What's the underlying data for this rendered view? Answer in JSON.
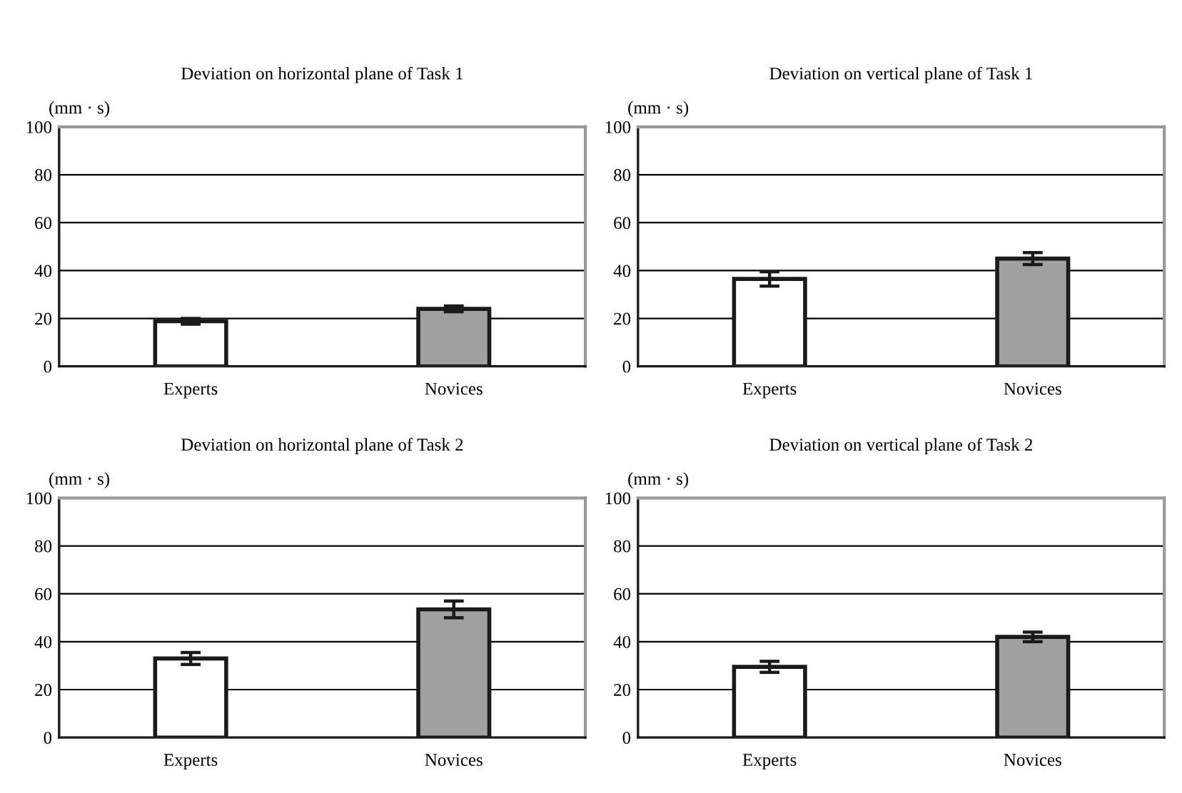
{
  "chart_data": [
    {
      "type": "bar",
      "title": "Deviation on horizontal plane of Task 1",
      "ylabel": "(mm · s)",
      "categories": [
        "Experts",
        "Novices"
      ],
      "values": [
        18.8,
        24
      ],
      "errors": [
        1.2,
        1.2
      ],
      "colors": [
        "#ffffff",
        "#a0a0a0"
      ],
      "ylim": [
        0,
        100
      ],
      "yticks": [
        0,
        20,
        40,
        60,
        80,
        100
      ],
      "grid": "y"
    },
    {
      "type": "bar",
      "title": "Deviation on vertical plane of Task 1",
      "ylabel": "(mm · s)",
      "categories": [
        "Experts",
        "Novices"
      ],
      "values": [
        36.5,
        45
      ],
      "errors": [
        3,
        2.5
      ],
      "colors": [
        "#ffffff",
        "#a0a0a0"
      ],
      "ylim": [
        0,
        100
      ],
      "yticks": [
        0,
        20,
        40,
        60,
        80,
        100
      ],
      "grid": "y"
    },
    {
      "type": "bar",
      "title": "Deviation on horizontal plane of Task 2",
      "ylabel": "(mm · s)",
      "categories": [
        "Experts",
        "Novices"
      ],
      "values": [
        33,
        53.5
      ],
      "errors": [
        2.5,
        3.5
      ],
      "colors": [
        "#ffffff",
        "#a0a0a0"
      ],
      "ylim": [
        0,
        100
      ],
      "yticks": [
        0,
        20,
        40,
        60,
        80,
        100
      ],
      "grid": "y"
    },
    {
      "type": "bar",
      "title": "Deviation on vertical plane of Task 2",
      "ylabel": "(mm · s)",
      "categories": [
        "Experts",
        "Novices"
      ],
      "values": [
        29.5,
        42
      ],
      "errors": [
        2.3,
        2
      ],
      "colors": [
        "#ffffff",
        "#a0a0a0"
      ],
      "ylim": [
        0,
        100
      ],
      "yticks": [
        0,
        20,
        40,
        60,
        80,
        100
      ],
      "grid": "y"
    }
  ]
}
